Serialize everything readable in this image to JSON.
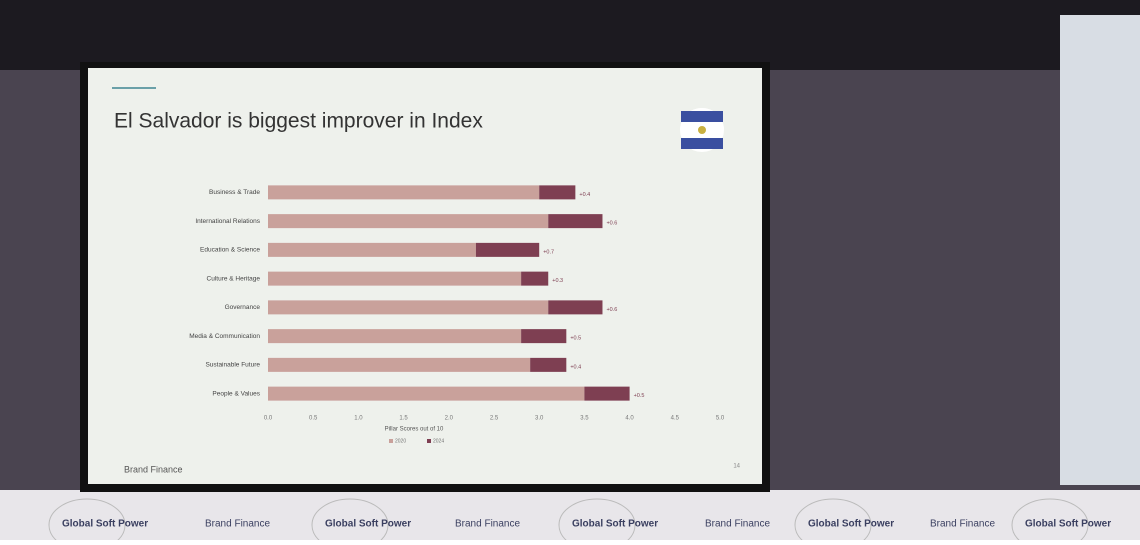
{
  "chart_data": {
    "type": "bar",
    "orientation": "horizontal",
    "stacked": true,
    "title": "El Salvador is biggest improver in Index",
    "categories": [
      "Business & Trade",
      "International Relations",
      "Education & Science",
      "Culture & Heritage",
      "Governance",
      "Media & Communication",
      "Sustainable Future",
      "People & Values"
    ],
    "series": [
      {
        "name": "2020",
        "color": "#c9a19b",
        "values": [
          3.0,
          3.1,
          2.3,
          2.8,
          3.1,
          2.8,
          2.9,
          3.5
        ]
      },
      {
        "name": "2024",
        "color": "#7e3f52",
        "values": [
          0.4,
          0.6,
          0.7,
          0.3,
          0.6,
          0.5,
          0.4,
          0.5
        ],
        "value_labels": [
          "+0.4",
          "+0.6",
          "+0.7",
          "+0.3",
          "+0.6",
          "+0.5",
          "+0.4",
          "+0.5"
        ]
      }
    ],
    "xlim": [
      0,
      5
    ],
    "xticks": [
      {
        "value": 0,
        "label": "0.0"
      },
      {
        "value": 0.5,
        "label": "0.5"
      },
      {
        "value": 1,
        "label": "1.0"
      },
      {
        "value": 1.5,
        "label": "1.5"
      },
      {
        "value": 2,
        "label": "2.0"
      },
      {
        "value": 2.5,
        "label": "2.5"
      },
      {
        "value": 3,
        "label": "3.0"
      },
      {
        "value": 3.5,
        "label": "3.5"
      },
      {
        "value": 4,
        "label": "4.0"
      },
      {
        "value": 4.5,
        "label": "4.5"
      },
      {
        "value": 5,
        "label": "5.0"
      }
    ],
    "xlabel": "Pillar Scores out of 10",
    "legend": "bottom",
    "footer": "Brand Finance",
    "page_number": "14"
  },
  "banners": [
    "Global Soft Power",
    "Brand Finance",
    "Global Soft Power",
    "Brand Finance",
    "Global Soft Power",
    "Brand Finance",
    "Global Soft Power",
    "Brand Finance",
    "Global Soft Power"
  ]
}
